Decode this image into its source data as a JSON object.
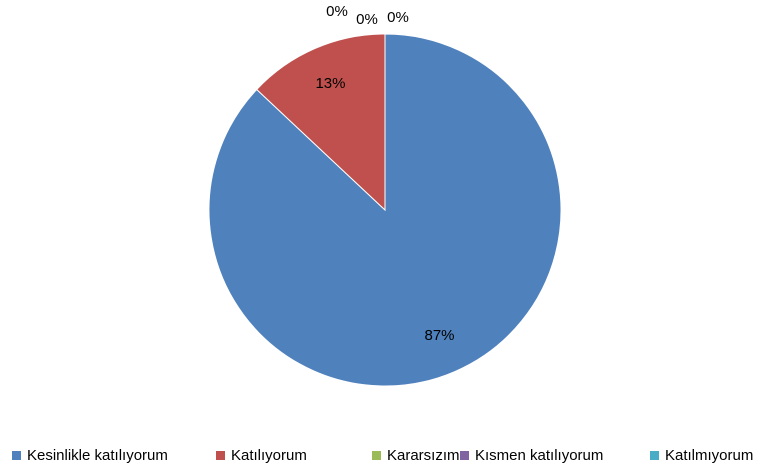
{
  "chart_data": {
    "type": "pie",
    "categories": [
      "Kesinlikle katılıyorum",
      "Katılıyorum",
      "Kararsızım",
      "Kısmen katılıyorum",
      "Katılmıyorum"
    ],
    "values": [
      87,
      13,
      0,
      0,
      0
    ],
    "value_labels": [
      "87%",
      "13%",
      "0%",
      "0%",
      "0%"
    ],
    "colors": [
      "#4f81bd",
      "#c0504d",
      "#9bbb59",
      "#8064a2",
      "#4bacc6"
    ],
    "legend": "bottom"
  }
}
